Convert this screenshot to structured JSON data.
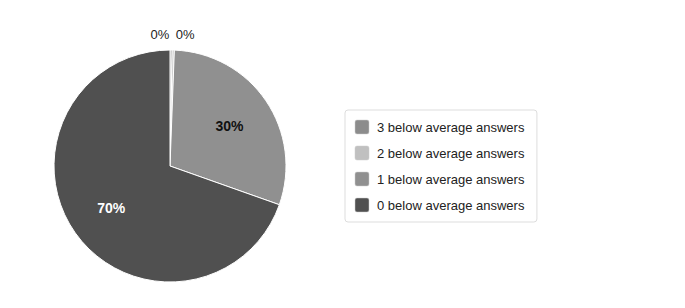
{
  "chart_data": {
    "type": "pie",
    "categories": [
      "3 below average answers",
      "2 below average answers",
      "1 below average answers",
      "0 below average answers"
    ],
    "values": [
      0.3,
      0.3,
      30,
      70
    ],
    "value_labels": [
      "0%",
      "0%",
      "30%",
      "70%"
    ],
    "colors": [
      "#8C8C8C",
      "#C0C0C0",
      "#909090",
      "#505050"
    ],
    "data_labels": true,
    "legend": "right"
  }
}
